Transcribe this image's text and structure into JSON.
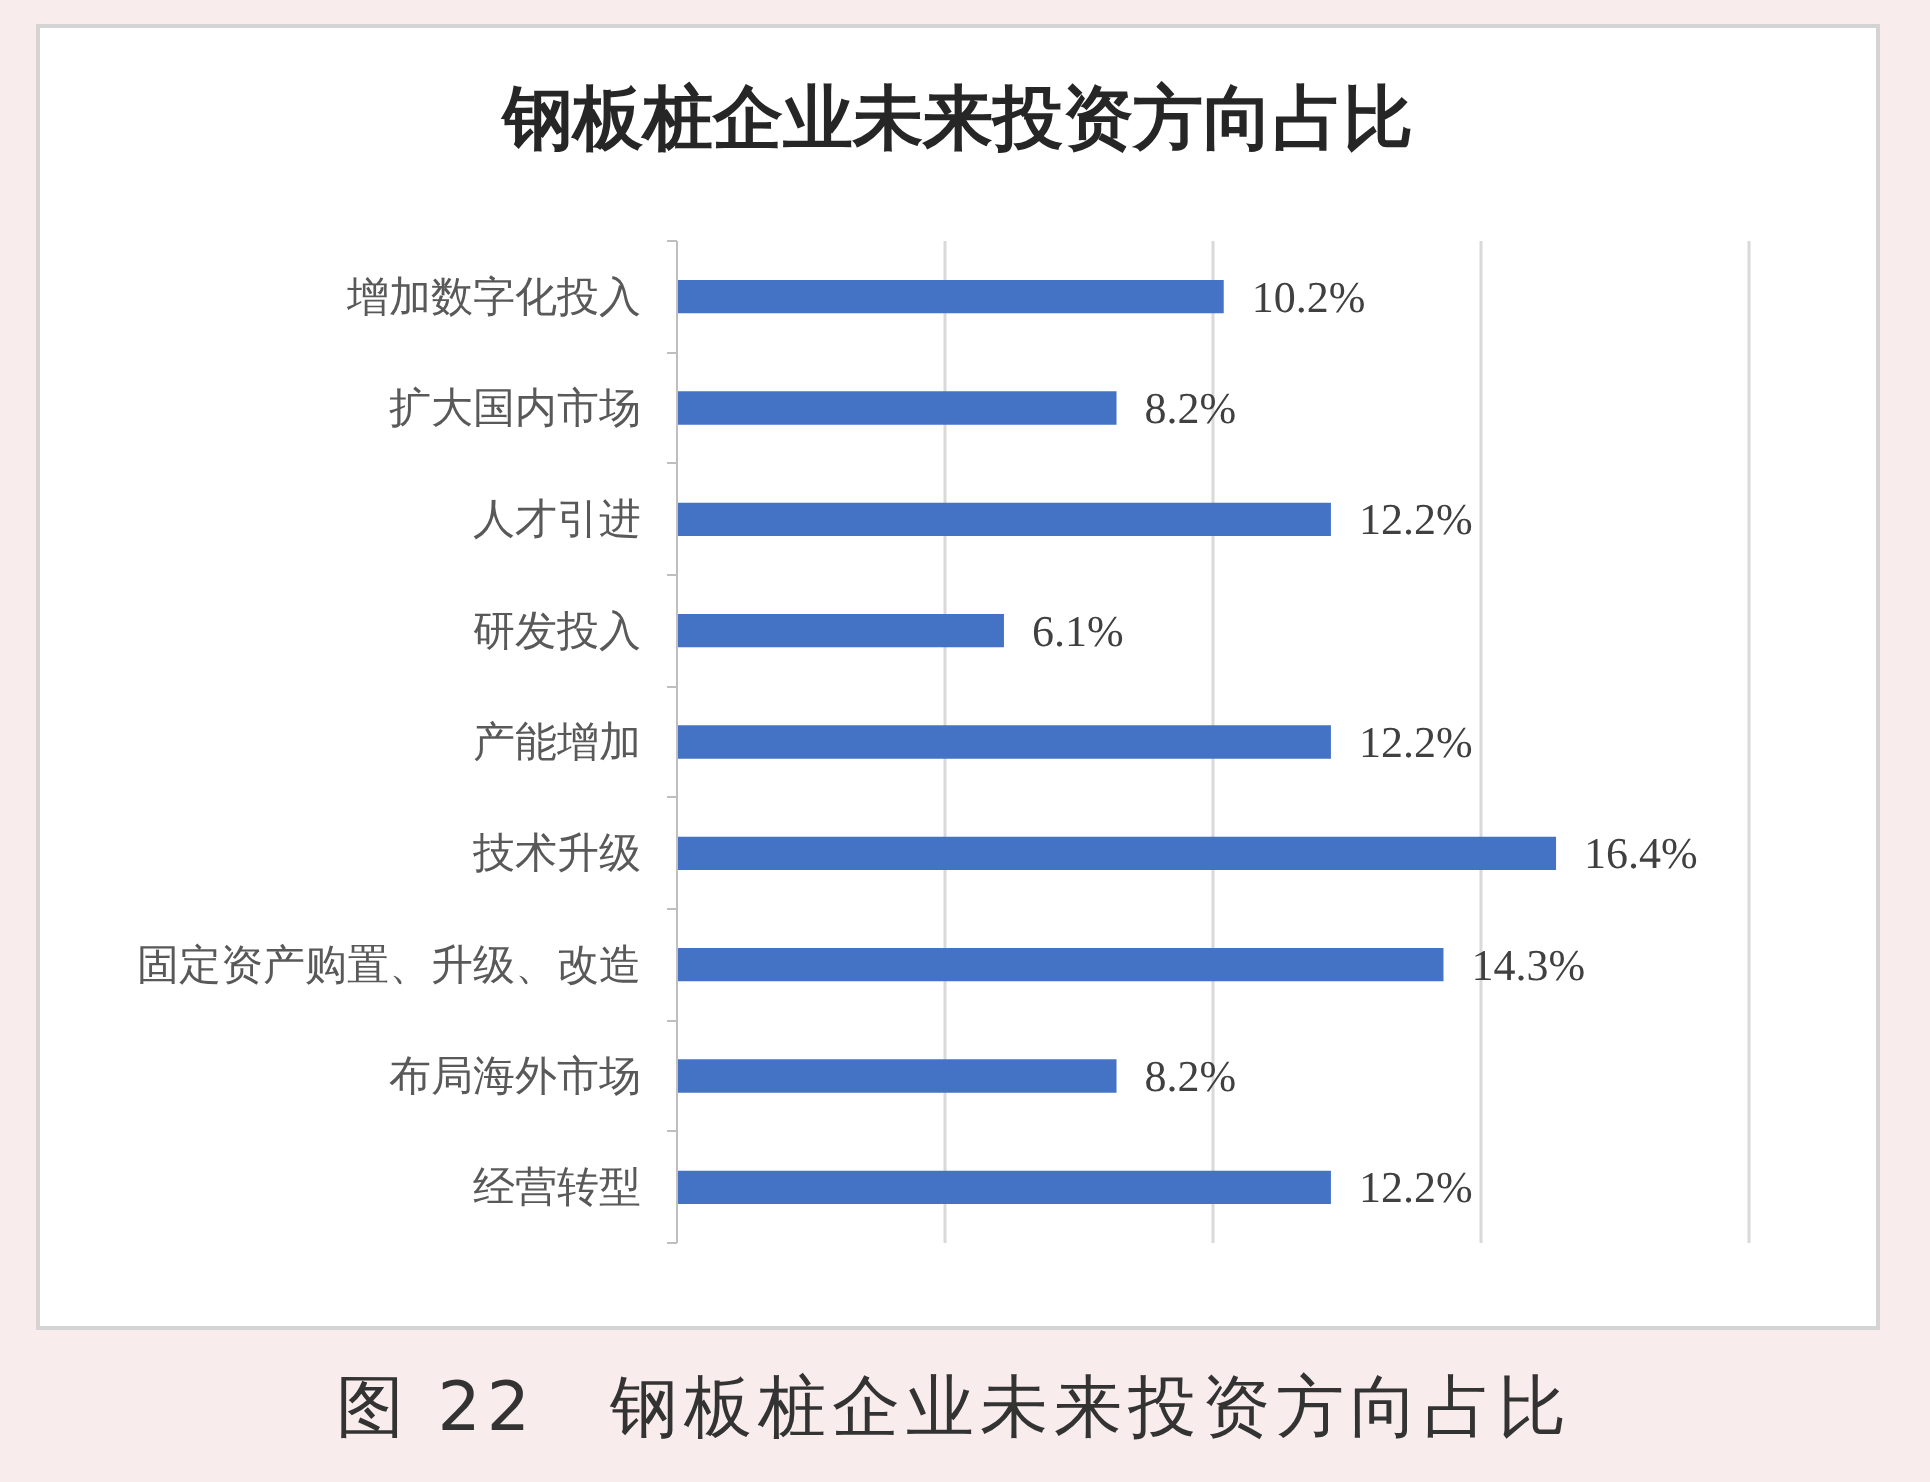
{
  "chart_data": {
    "type": "bar",
    "orientation": "horizontal",
    "title": "钢板桩企业未来投资方向占比",
    "categories": [
      "增加数字化投入",
      "扩大国内市场",
      "人才引进",
      "研发投入",
      "产能增加",
      "技术升级",
      "固定资产购置、升级、改造",
      "布局海外市场",
      "经营转型"
    ],
    "values": [
      10.2,
      8.2,
      12.2,
      6.1,
      12.2,
      16.4,
      14.3,
      8.2,
      12.2
    ],
    "value_labels": [
      "10.2%",
      "8.2%",
      "12.2%",
      "6.1%",
      "12.2%",
      "16.4%",
      "14.3%",
      "8.2%",
      "12.2%"
    ],
    "color": "#4472c4",
    "xlim": [
      0,
      20
    ],
    "xticks": [
      {
        "value": 0,
        "label": null
      },
      {
        "value": 5,
        "label": null
      },
      {
        "value": 10,
        "label": null
      },
      {
        "value": 15,
        "label": null
      },
      {
        "value": 20,
        "label": null
      }
    ],
    "grid": "x",
    "tick_labels": "y",
    "annotations": [
      "图 22　钢板桩企业未来投资方向占比"
    ]
  }
}
